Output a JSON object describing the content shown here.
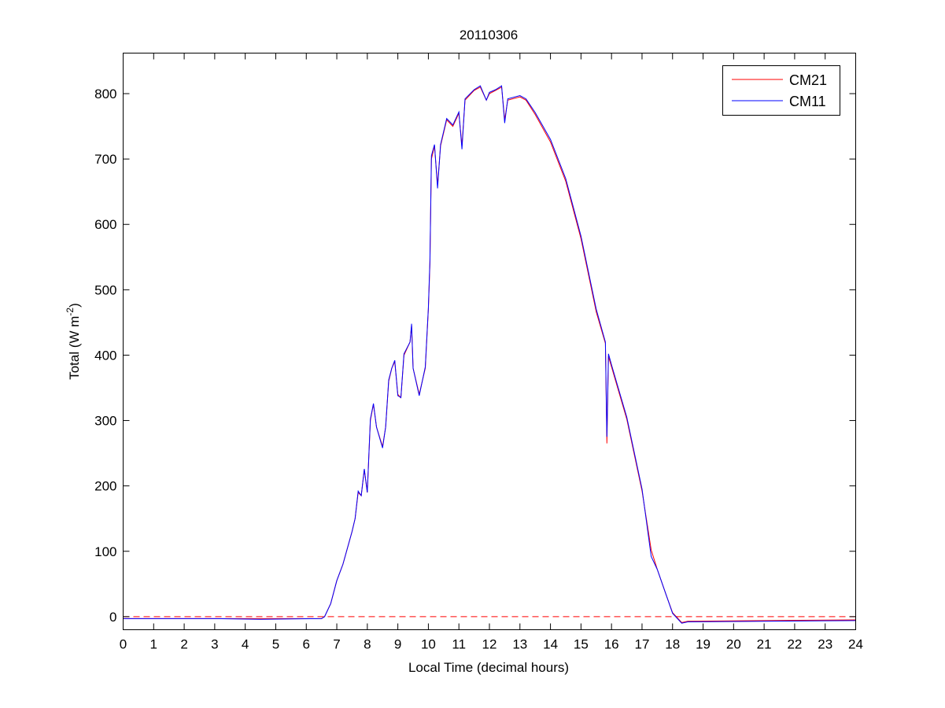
{
  "chart_data": {
    "type": "line",
    "title": "20110306",
    "xlabel": "Local Time (decimal hours)",
    "ylabel_main": "Total (W m",
    "ylabel_sup": "-2",
    "ylabel_close": ")",
    "xlim": [
      0,
      24
    ],
    "ylim": [
      -20,
      862
    ],
    "xticks": [
      0,
      1,
      2,
      3,
      4,
      5,
      6,
      7,
      8,
      9,
      10,
      11,
      12,
      13,
      14,
      15,
      16,
      17,
      18,
      19,
      20,
      21,
      22,
      23,
      24
    ],
    "yticks": [
      0,
      100,
      200,
      300,
      400,
      500,
      600,
      700,
      800
    ],
    "grid": false,
    "legend_position": "top-right",
    "reference_line": {
      "y": 0,
      "style": "dashed",
      "color": "#ff0000"
    },
    "x": [
      0,
      3,
      4.5,
      6.5,
      6.6,
      6.8,
      7.0,
      7.2,
      7.5,
      7.6,
      7.7,
      7.8,
      7.9,
      8.0,
      8.1,
      8.2,
      8.3,
      8.5,
      8.6,
      8.7,
      8.8,
      8.9,
      9.0,
      9.1,
      9.2,
      9.4,
      9.45,
      9.5,
      9.7,
      9.9,
      10.0,
      10.05,
      10.1,
      10.2,
      10.3,
      10.4,
      10.6,
      10.8,
      11.0,
      11.1,
      11.2,
      11.5,
      11.7,
      11.9,
      12.0,
      12.2,
      12.4,
      12.5,
      12.6,
      13.0,
      13.2,
      13.5,
      14.0,
      14.5,
      15.0,
      15.5,
      15.8,
      15.85,
      15.9,
      16.0,
      16.5,
      17.0,
      17.3,
      17.5,
      17.8,
      18.0,
      18.3,
      18.5,
      21,
      24
    ],
    "series": [
      {
        "name": "CM21",
        "color": "#ff0000",
        "values": [
          -3,
          -3,
          -3,
          -3,
          0,
          20,
          55,
          80,
          130,
          150,
          190,
          185,
          225,
          190,
          300,
          325,
          290,
          260,
          290,
          360,
          380,
          390,
          340,
          335,
          400,
          420,
          445,
          380,
          340,
          380,
          470,
          540,
          700,
          720,
          660,
          720,
          760,
          750,
          770,
          720,
          790,
          805,
          810,
          790,
          800,
          805,
          810,
          760,
          790,
          795,
          790,
          768,
          726,
          666,
          578,
          466,
          418,
          265,
          398,
          382,
          302,
          192,
          102,
          72,
          32,
          6,
          -9,
          -7,
          -6,
          -5
        ]
      },
      {
        "name": "CM11",
        "color": "#0000ff",
        "values": [
          -3,
          -3,
          -4,
          -3,
          0,
          20,
          55,
          80,
          130,
          150,
          192,
          185,
          226,
          190,
          302,
          326,
          290,
          258,
          290,
          362,
          380,
          392,
          338,
          335,
          402,
          420,
          448,
          380,
          338,
          382,
          472,
          545,
          705,
          722,
          655,
          722,
          762,
          752,
          772,
          715,
          792,
          806,
          812,
          790,
          802,
          806,
          812,
          755,
          792,
          797,
          792,
          771,
          730,
          670,
          582,
          470,
          420,
          275,
          402,
          385,
          305,
          195,
          92,
          72,
          32,
          5,
          -10,
          -8,
          -7,
          -6
        ]
      }
    ]
  }
}
